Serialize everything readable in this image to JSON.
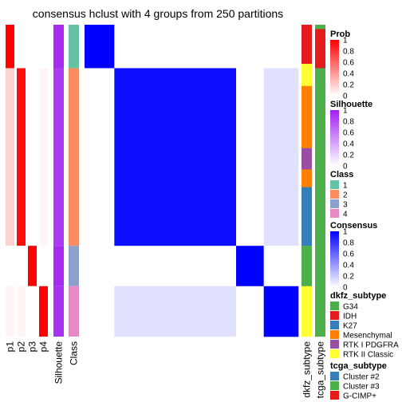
{
  "chart_data": {
    "type": "heatmap",
    "title": "consensus hclust with 4 groups from 250 partitions",
    "row_groups": [
      {
        "class": "1",
        "weight": 56
      },
      {
        "class": "2",
        "weight": 229
      },
      {
        "class": "3",
        "weight": 52
      },
      {
        "class": "4",
        "weight": 65
      }
    ],
    "annotation_columns": [
      {
        "label": "p1",
        "type": "prob",
        "values": [
          1,
          0.18,
          0,
          0.04
        ]
      },
      {
        "label": "p2",
        "type": "prob",
        "values": [
          0,
          0.95,
          0,
          0.04
        ]
      },
      {
        "label": "p3",
        "type": "prob",
        "values": [
          0,
          0,
          1,
          0
        ]
      },
      {
        "label": "p4",
        "type": "prob",
        "values": [
          0,
          0.04,
          0,
          1
        ]
      },
      {
        "label": "Silhouette",
        "type": "silhouette",
        "values": [
          0.95,
          0.88,
          0.95,
          0.92
        ]
      },
      {
        "label": "Class",
        "type": "class",
        "values": [
          "1",
          "2",
          "3",
          "4"
        ]
      }
    ],
    "consensus_blocks": [
      [
        1,
        0,
        0,
        0
      ],
      [
        0,
        0.95,
        0,
        0.12
      ],
      [
        0,
        0,
        1,
        0
      ],
      [
        0,
        0.12,
        0,
        1
      ]
    ],
    "side_columns": [
      {
        "label": "dkfz_subtype"
      },
      {
        "label": "tcga_subtype"
      }
    ],
    "legends": [
      {
        "title": "Prob",
        "type": "gradient",
        "ticks": [
          "1",
          "0.8",
          "0.6",
          "0.4",
          "0.2",
          "0"
        ],
        "colors": [
          "#ff0000",
          "#ffffff"
        ]
      },
      {
        "title": "Silhouette",
        "type": "gradient",
        "ticks": [
          "1",
          "0.8",
          "0.6",
          "0.4",
          "0.2",
          "0"
        ],
        "colors": [
          "#a020f0",
          "#ffffff"
        ]
      },
      {
        "title": "Class",
        "type": "discrete",
        "items": [
          {
            "label": "1",
            "color": "#66c2a5"
          },
          {
            "label": "2",
            "color": "#fc8d62"
          },
          {
            "label": "3",
            "color": "#8da0cb"
          },
          {
            "label": "4",
            "color": "#e78ac3"
          }
        ]
      },
      {
        "title": "Consensus",
        "type": "gradient",
        "ticks": [
          "1",
          "0.8",
          "0.6",
          "0.4",
          "0.2",
          "0"
        ],
        "colors": [
          "#0000ff",
          "#ffffff"
        ]
      },
      {
        "title": "dkfz_subtype",
        "type": "discrete",
        "items": [
          {
            "label": "G34",
            "color": "#4daf4a"
          },
          {
            "label": "IDH",
            "color": "#e41a1c"
          },
          {
            "label": "K27",
            "color": "#377eb8"
          },
          {
            "label": "Mesenchymal",
            "color": "#ff7f00"
          },
          {
            "label": "RTK I PDGFRA",
            "color": "#984ea3"
          },
          {
            "label": "RTK II Classic",
            "color": "#ffff33"
          }
        ]
      },
      {
        "title": "tcga_subtype",
        "type": "discrete",
        "items": [
          {
            "label": "Cluster #2",
            "color": "#377eb8"
          },
          {
            "label": "Cluster #3",
            "color": "#4daf4a"
          },
          {
            "label": "G-CIMP+",
            "color": "#e41a1c"
          }
        ]
      }
    ]
  }
}
